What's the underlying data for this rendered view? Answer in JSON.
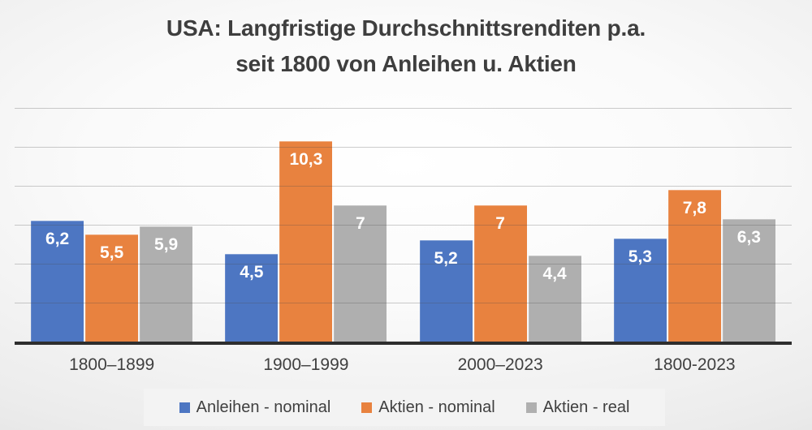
{
  "title": {
    "line1": "USA: Langfristige Durchschnittsrenditen p.a.",
    "line2": "seit 1800 von Anleihen u. Aktien"
  },
  "chart_data": {
    "type": "bar",
    "title": "USA: Langfristige Durchschnittsrenditen p.a. seit 1800 von Anleihen u. Aktien",
    "categories": [
      "1800–1899",
      "1900–1999",
      "2000–2023",
      "1800-2023"
    ],
    "series": [
      {
        "name": "Anleihen - nominal",
        "color": "#4d76c2",
        "values": [
          6.2,
          4.5,
          5.2,
          5.3
        ],
        "labels": [
          "6,2",
          "4,5",
          "5,2",
          "5,3"
        ]
      },
      {
        "name": "Aktien - nominal",
        "color": "#e8823f",
        "values": [
          5.5,
          10.3,
          7,
          7.8
        ],
        "labels": [
          "5,5",
          "10,3",
          "7",
          "7,8"
        ]
      },
      {
        "name": "Aktien - real",
        "color": "#afafaf",
        "values": [
          5.9,
          7,
          4.4,
          6.3
        ],
        "labels": [
          "5,9",
          "7",
          "4,4",
          "6,3"
        ]
      }
    ],
    "xlabel": "",
    "ylabel": "",
    "ylim": [
      0,
      12
    ],
    "gridline_step": 2,
    "grid": true,
    "legend_position": "bottom",
    "value_labels": "inside-end",
    "value_label_color": "#ffffff",
    "axis_line_color": "#2e2e2e"
  },
  "legend": {
    "items": [
      {
        "label": "Anleihen - nominal",
        "color": "#4d76c2"
      },
      {
        "label": "Aktien - nominal",
        "color": "#e8823f"
      },
      {
        "label": "Aktien - real",
        "color": "#afafaf"
      }
    ]
  }
}
